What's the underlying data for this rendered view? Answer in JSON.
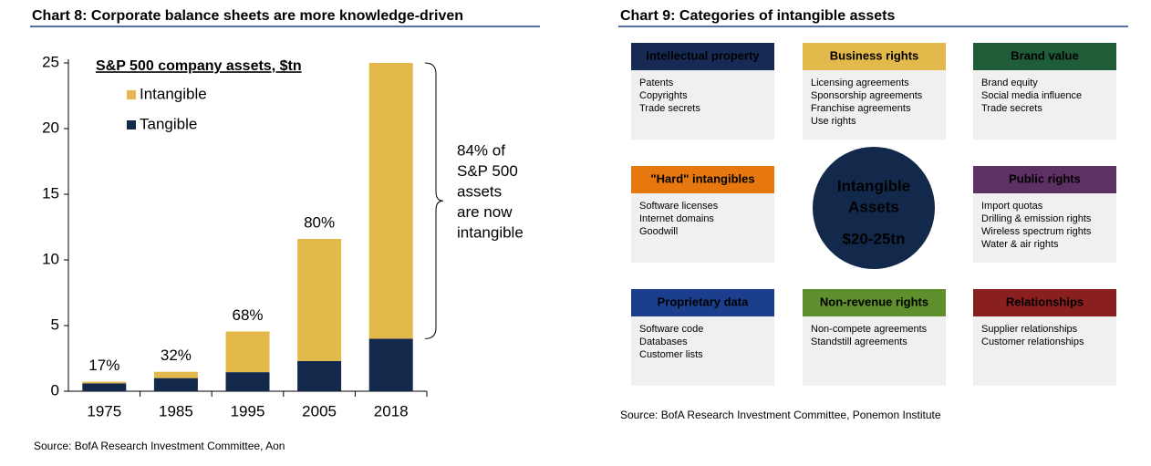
{
  "chart_data": {
    "type": "stacked_bar",
    "title": "Chart 8: Corporate balance sheets are more knowledge-driven",
    "legend_title": "S&P 500 company assets, $tn",
    "categories": [
      "1975",
      "1985",
      "1995",
      "2005",
      "2018"
    ],
    "series": [
      {
        "name": "Tangible",
        "color": "#13294b",
        "values": [
          0.6,
          1.0,
          1.45,
          2.3,
          4.0
        ]
      },
      {
        "name": "Intangible",
        "color": "#e3b94b",
        "values": [
          0.12,
          0.48,
          3.1,
          9.3,
          21.0
        ]
      }
    ],
    "share_labels": [
      "17%",
      "32%",
      "68%",
      "80%",
      "84%"
    ],
    "ylim": [
      0,
      25
    ],
    "yticks": [
      0,
      5,
      10,
      15,
      20,
      25
    ],
    "annotation": [
      "84% of",
      "S&P 500",
      "assets",
      "are now",
      "intangible"
    ],
    "source": "Source: BofA Research Investment Committee, Aon"
  },
  "diagram": {
    "title": "Chart 9: Categories of intangible assets",
    "center": [
      "Intangible",
      "Assets",
      "$20-25tn"
    ],
    "boxes": [
      {
        "title": "Intellectual property",
        "color": "#172a55",
        "items": [
          "Patents",
          "Copyrights",
          "Trade secrets"
        ]
      },
      {
        "title": "Business rights",
        "color": "#e3b94b",
        "items": [
          "Licensing agreements",
          "Sponsorship agreements",
          "Franchise agreements",
          "Use rights"
        ]
      },
      {
        "title": "Brand value",
        "color": "#1f5c38",
        "items": [
          "Brand equity",
          "Social media influence",
          "Trade secrets"
        ]
      },
      {
        "title": "\"Hard\" intangibles",
        "color": "#e6780f",
        "items": [
          "Software licenses",
          "Internet domains",
          "Goodwill"
        ]
      },
      {
        "title": "Public rights",
        "color": "#5d3163",
        "items": [
          "Import quotas",
          "Drilling  & emission rights",
          "Wireless spectrum rights",
          "Water & air rights"
        ]
      },
      {
        "title": "Proprietary data",
        "color": "#1b3f8c",
        "items": [
          "Software code",
          "Databases",
          "Customer lists"
        ]
      },
      {
        "title": "Non-revenue rights",
        "color": "#5f8f2c",
        "items": [
          "Non-compete agreements",
          "Standstill agreements"
        ]
      },
      {
        "title": "Relationships",
        "color": "#8a1f1f",
        "items": [
          "Supplier relationships",
          "Customer relationships"
        ]
      }
    ],
    "source": "Source: BofA Research Investment Committee, Ponemon Institute"
  }
}
